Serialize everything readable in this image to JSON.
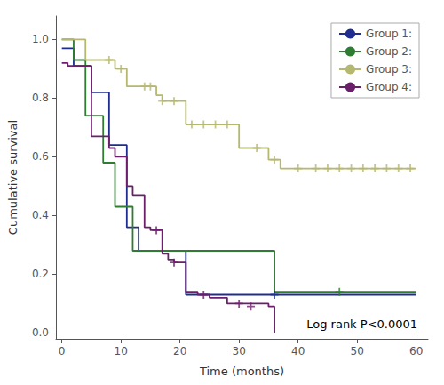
{
  "chart_data": {
    "type": "step",
    "xlabel": "Time (months)",
    "ylabel": "Cumulative survival",
    "xlim": [
      -1,
      62
    ],
    "ylim": [
      -0.02,
      1.08
    ],
    "xticks": [
      0,
      10,
      20,
      30,
      40,
      50,
      60
    ],
    "yticks": [
      {
        "value": 0.0,
        "label": "0.0"
      },
      0.2,
      0.4,
      0.6,
      0.8,
      {
        "value": 1.0,
        "label": "1.0"
      }
    ],
    "grid": false,
    "legend": "upper right",
    "annotation": "Log rank P<0.0001",
    "series": [
      {
        "name": "Group 1:",
        "color": "#1e2d8f",
        "marker": "plus",
        "x": [
          0,
          2,
          5,
          8,
          11,
          13,
          21,
          60
        ],
        "values": [
          0.97,
          0.91,
          0.82,
          0.64,
          0.36,
          0.28,
          0.13,
          0.13
        ],
        "censor_x": [
          36
        ],
        "censor_values": [
          0.13
        ]
      },
      {
        "name": "Group 2:",
        "color": "#2e7d32",
        "marker": "plus",
        "x": [
          0,
          2,
          4,
          7,
          9,
          12,
          36,
          60
        ],
        "values": [
          1.0,
          0.93,
          0.74,
          0.58,
          0.43,
          0.28,
          0.14,
          0.14
        ],
        "censor_x": [
          47
        ],
        "censor_values": [
          0.14
        ]
      },
      {
        "name": "Group 3:",
        "color": "#b5b870",
        "marker": "plus",
        "x": [
          0,
          4,
          9,
          11,
          16,
          17,
          21,
          30,
          35,
          37,
          60
        ],
        "values": [
          1.0,
          0.93,
          0.9,
          0.84,
          0.81,
          0.79,
          0.71,
          0.63,
          0.59,
          0.56,
          0.56
        ],
        "censor_x": [
          8,
          10,
          14,
          15,
          17,
          19,
          22,
          24,
          26,
          28,
          33,
          36,
          40,
          43,
          45,
          47,
          49,
          51,
          53,
          55,
          57,
          59
        ],
        "censor_values": [
          0.93,
          0.9,
          0.84,
          0.84,
          0.79,
          0.79,
          0.71,
          0.71,
          0.71,
          0.71,
          0.63,
          0.59,
          0.56,
          0.56,
          0.56,
          0.56,
          0.56,
          0.56,
          0.56,
          0.56,
          0.56,
          0.56
        ]
      },
      {
        "name": "Group 4:",
        "color": "#6b1f6b",
        "marker": "plus",
        "x": [
          0,
          1,
          4,
          5,
          7,
          8,
          9,
          11,
          12,
          14,
          15,
          17,
          18,
          19,
          21,
          23,
          25,
          28,
          35,
          36
        ],
        "values": [
          0.92,
          0.91,
          0.91,
          0.67,
          0.67,
          0.63,
          0.6,
          0.5,
          0.47,
          0.36,
          0.35,
          0.27,
          0.25,
          0.24,
          0.14,
          0.13,
          0.12,
          0.1,
          0.09,
          0.0
        ],
        "censor_x": [
          16,
          19,
          24,
          30,
          32
        ],
        "censor_values": [
          0.35,
          0.24,
          0.13,
          0.1,
          0.09
        ]
      }
    ]
  }
}
